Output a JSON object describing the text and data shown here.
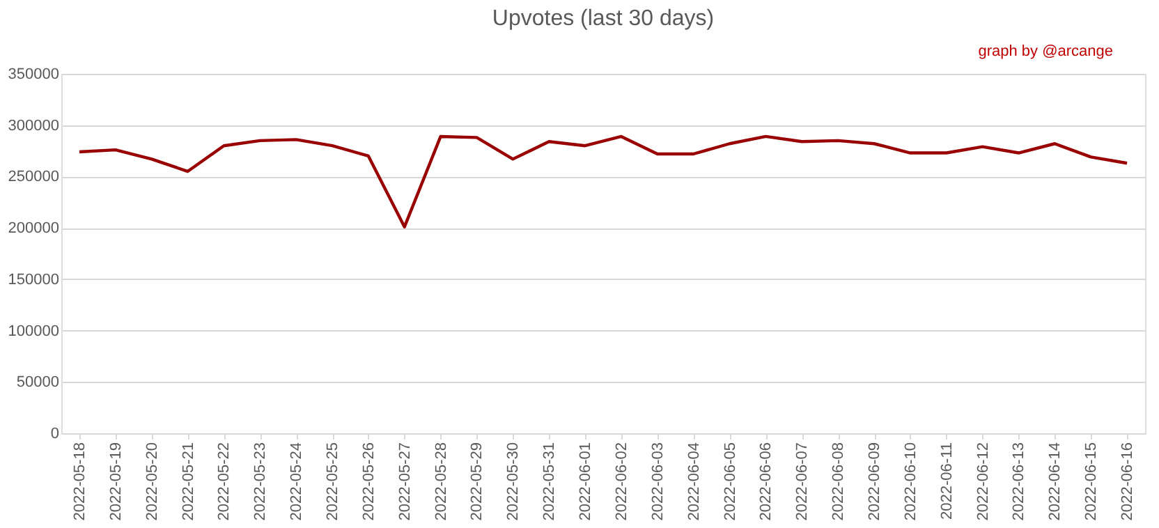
{
  "chart_data": {
    "type": "line",
    "title": "Upvotes (last 30 days)",
    "annotations": [
      "graph by @arcange"
    ],
    "categories": [
      "2022-05-18",
      "2022-05-19",
      "2022-05-20",
      "2022-05-21",
      "2022-05-22",
      "2022-05-23",
      "2022-05-24",
      "2022-05-25",
      "2022-05-26",
      "2022-05-27",
      "2022-05-28",
      "2022-05-29",
      "2022-05-30",
      "2022-05-31",
      "2022-06-01",
      "2022-06-02",
      "2022-06-03",
      "2022-06-04",
      "2022-06-05",
      "2022-06-06",
      "2022-06-07",
      "2022-06-08",
      "2022-06-09",
      "2022-06-10",
      "2022-06-11",
      "2022-06-12",
      "2022-06-13",
      "2022-06-14",
      "2022-06-15",
      "2022-06-16"
    ],
    "series": [
      {
        "color": "#990000",
        "values": [
          274000,
          276000,
          267000,
          255000,
          280000,
          285000,
          286000,
          280000,
          270000,
          201000,
          289000,
          288000,
          267000,
          284000,
          280000,
          289000,
          272000,
          272000,
          282000,
          289000,
          284000,
          285000,
          282000,
          273000,
          273000,
          279000,
          273000,
          282000,
          269000,
          263000
        ]
      }
    ],
    "ylim": [
      0,
      350000
    ],
    "yticks": [
      0,
      50000,
      100000,
      150000,
      200000,
      250000,
      300000,
      350000
    ],
    "grid": "y",
    "marker": "none",
    "line_style": "solid"
  }
}
